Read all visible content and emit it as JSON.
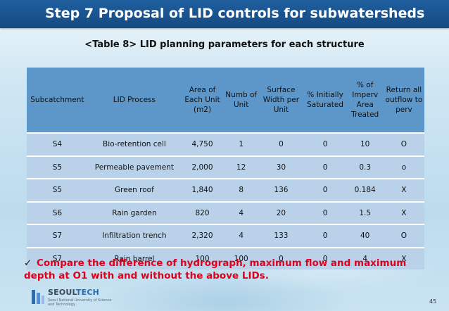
{
  "slide": {
    "title": "Step 7 Proposal of LID controls for subwatersheds",
    "subtitle": "<Table 8> LID planning parameters for each structure",
    "page_number": "45"
  },
  "table": {
    "headers": [
      "Subcatchment",
      "LID Process",
      "Area of Each Unit (m2)",
      "Numb of Unit",
      "Surface Width per Unit",
      "% Initially Saturated",
      "% of Imperv Area Treated",
      "Return all outflow to perv"
    ],
    "rows": [
      [
        "S4",
        "Bio-retention cell",
        "4,750",
        "1",
        "0",
        "0",
        "10",
        "O"
      ],
      [
        "S5",
        "Permeable pavement",
        "2,000",
        "12",
        "30",
        "0",
        "0.3",
        "o"
      ],
      [
        "S5",
        "Green roof",
        "1,840",
        "8",
        "136",
        "0",
        "0.184",
        "X"
      ],
      [
        "S6",
        "Rain garden",
        "820",
        "4",
        "20",
        "0",
        "1.5",
        "X"
      ],
      [
        "S7",
        "Infiltration trench",
        "2,320",
        "4",
        "133",
        "0",
        "40",
        "O"
      ],
      [
        "S7",
        "Rain barrel",
        "100",
        "100",
        "0",
        "0",
        "4",
        "X"
      ]
    ]
  },
  "note": {
    "text": "Compare the difference of hydrograph, maximum flow  and maximum depth at O1 with and without the above LIDs."
  },
  "logo": {
    "name_part1": "SEOUL",
    "name_part2": "TECH",
    "tagline": "Seoul National University of Science and Technology"
  },
  "colors": {
    "title_bar": "#1a5590",
    "header_fill": "#5d97c9",
    "row_fill": "#b9d2ea",
    "note_text": "#e0001c"
  }
}
